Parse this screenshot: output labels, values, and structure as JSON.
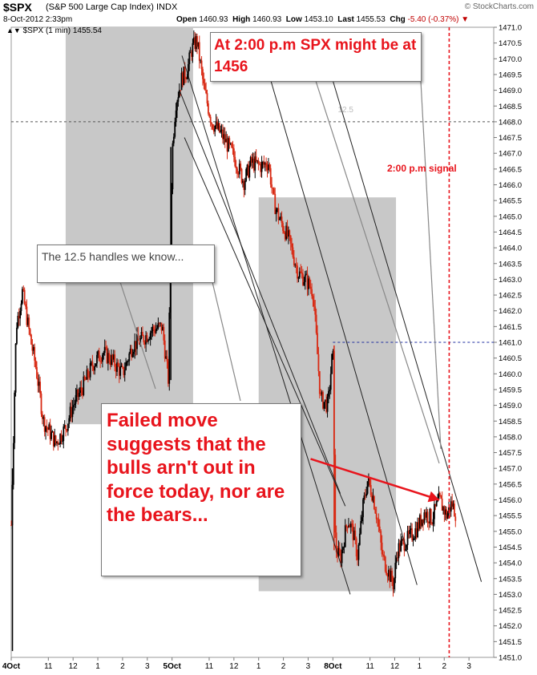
{
  "header": {
    "symbol": "$SPX",
    "name": "(S&P 500 Large Cap Index) INDX",
    "date": "8-Oct-2012 2:33pm",
    "open_label": "Open",
    "open": "1460.93",
    "high_label": "High",
    "high": "1460.93",
    "low_label": "Low",
    "low": "1453.10",
    "last_label": "Last",
    "last": "1455.53",
    "chg_label": "Chg",
    "chg": "-5.40 (-0.37%)",
    "brand": "© StockCharts.com"
  },
  "legend": {
    "text": "$SPX (1 min) 1455.54"
  },
  "annotations": {
    "top_callout": "At 2:00 p.m SPX might be at 1456",
    "signal_label": "2:00 p.m signal",
    "handles_callout": "The 12.5 handles we know...",
    "main_callout": "Failed move suggests that the bulls arn't out in force today, nor are the bears...",
    "faint_label": "12.5"
  },
  "colors": {
    "up": "#000000",
    "down": "#d82a14",
    "accent": "#e8141c",
    "shade": "#c8c8c8",
    "blue_line": "#1f2fa0"
  },
  "chart_data": {
    "type": "candlestick",
    "interval": "1 min",
    "ylim": [
      1451.0,
      1471.0
    ],
    "y_ticks": [
      "1451.0",
      "1451.5",
      "1452.0",
      "1452.5",
      "1453.0",
      "1453.5",
      "1454.0",
      "1454.5",
      "1455.0",
      "1455.5",
      "1456.0",
      "1456.5",
      "1457.0",
      "1457.5",
      "1458.0",
      "1458.5",
      "1459.0",
      "1459.5",
      "1460.0",
      "1460.5",
      "1461.0",
      "1461.5",
      "1462.0",
      "1462.5",
      "1463.0",
      "1463.5",
      "1464.0",
      "1464.5",
      "1465.0",
      "1465.5",
      "1466.0",
      "1466.5",
      "1467.0",
      "1467.5",
      "1468.0",
      "1468.5",
      "1469.0",
      "1469.5",
      "1470.0",
      "1470.5",
      "1471.0"
    ],
    "x_ticks": [
      {
        "label": "4Oct",
        "t": 0,
        "bold": true
      },
      {
        "label": "11",
        "t": 1.5
      },
      {
        "label": "12",
        "t": 2.5
      },
      {
        "label": "1",
        "t": 3.5
      },
      {
        "label": "2",
        "t": 4.5
      },
      {
        "label": "3",
        "t": 5.5
      },
      {
        "label": "5Oct",
        "t": 6.5,
        "bold": true
      },
      {
        "label": "11",
        "t": 8.0
      },
      {
        "label": "12",
        "t": 9.0
      },
      {
        "label": "1",
        "t": 10.0
      },
      {
        "label": "2",
        "t": 11.0
      },
      {
        "label": "3",
        "t": 12.0
      },
      {
        "label": "8Oct",
        "t": 13.0,
        "bold": true
      },
      {
        "label": "11",
        "t": 14.5
      },
      {
        "label": "12",
        "t": 15.5
      },
      {
        "label": "1",
        "t": 16.5
      },
      {
        "label": "2",
        "t": 17.5
      },
      {
        "label": "3",
        "t": 18.5
      }
    ],
    "xlim": [
      0,
      19.5
    ],
    "price_path": [
      [
        0.0,
        1455.2
      ],
      [
        0.2,
        1461.5
      ],
      [
        0.45,
        1462.6
      ],
      [
        0.8,
        1461.0
      ],
      [
        1.0,
        1460.2
      ],
      [
        1.3,
        1458.5
      ],
      [
        1.8,
        1457.8
      ],
      [
        2.2,
        1458.3
      ],
      [
        2.5,
        1459.0
      ],
      [
        2.9,
        1459.6
      ],
      [
        3.3,
        1460.3
      ],
      [
        3.7,
        1460.7
      ],
      [
        4.1,
        1460.4
      ],
      [
        4.5,
        1460.0
      ],
      [
        4.9,
        1460.9
      ],
      [
        5.3,
        1461.1
      ],
      [
        5.7,
        1461.4
      ],
      [
        6.1,
        1461.5
      ],
      [
        6.35,
        1459.8
      ],
      [
        6.5,
        1467.0
      ],
      [
        6.65,
        1468.6
      ],
      [
        6.9,
        1469.4
      ],
      [
        7.1,
        1469.6
      ],
      [
        7.3,
        1470.3
      ],
      [
        7.5,
        1470.6
      ],
      [
        7.8,
        1469.0
      ],
      [
        8.1,
        1468.0
      ],
      [
        8.5,
        1467.6
      ],
      [
        9.0,
        1466.9
      ],
      [
        9.4,
        1466.1
      ],
      [
        9.7,
        1466.7
      ],
      [
        10.1,
        1466.6
      ],
      [
        10.4,
        1466.7
      ],
      [
        10.6,
        1465.5
      ],
      [
        10.8,
        1465.0
      ],
      [
        11.2,
        1464.3
      ],
      [
        11.6,
        1463.2
      ],
      [
        11.9,
        1463.0
      ],
      [
        12.2,
        1462.6
      ],
      [
        12.5,
        1459.2
      ],
      [
        12.8,
        1459.0
      ],
      [
        13.0,
        1460.8
      ],
      [
        13.1,
        1454.5
      ],
      [
        13.3,
        1454.1
      ],
      [
        13.6,
        1455.4
      ],
      [
        13.8,
        1455.0
      ],
      [
        14.0,
        1454.2
      ],
      [
        14.2,
        1455.7
      ],
      [
        14.4,
        1456.6
      ],
      [
        14.6,
        1456.2
      ],
      [
        14.8,
        1455.4
      ],
      [
        15.0,
        1454.2
      ],
      [
        15.2,
        1453.8
      ],
      [
        15.45,
        1453.3
      ],
      [
        15.6,
        1454.4
      ],
      [
        15.8,
        1454.6
      ],
      [
        16.1,
        1454.8
      ],
      [
        16.4,
        1455.1
      ],
      [
        16.7,
        1455.6
      ],
      [
        17.0,
        1455.4
      ],
      [
        17.3,
        1456.0
      ],
      [
        17.6,
        1455.5
      ],
      [
        17.8,
        1455.9
      ],
      [
        18.0,
        1455.5
      ]
    ],
    "shaded_regions": [
      {
        "t0": 2.2,
        "t1": 7.35,
        "y0": 1458.4,
        "y1": 1471.0
      },
      {
        "t0": 10.0,
        "t1": 15.55,
        "y0": 1453.1,
        "y1": 1465.6
      }
    ],
    "horizontal_lines": [
      {
        "y": 1468.0,
        "t0": 0,
        "t1": 19.5,
        "style": "dashed",
        "color": "#555555"
      },
      {
        "y": 1461.0,
        "t0": 13.0,
        "t1": 19.5,
        "style": "dashed",
        "color": "#1f2fa0"
      }
    ],
    "trend_lines": [
      {
        "p0": [
          6.9,
          1470.1
        ],
        "p1": [
          13.7,
          1453.0
        ]
      },
      {
        "p0": [
          10.2,
          1470.1
        ],
        "p1": [
          16.4,
          1453.3
        ]
      },
      {
        "p0": [
          12.7,
          1470.1
        ],
        "p1": [
          19.0,
          1453.4
        ]
      },
      {
        "p0": [
          6.8,
          1469.0
        ],
        "p1": [
          13.3,
          1456.2
        ]
      },
      {
        "p0": [
          7.0,
          1467.5
        ],
        "p1": [
          13.5,
          1455.8
        ]
      }
    ],
    "signal_time": 17.7,
    "arrow": {
      "from": [
        12.1,
        1457.3
      ],
      "to": [
        17.3,
        1456.0
      ]
    }
  }
}
